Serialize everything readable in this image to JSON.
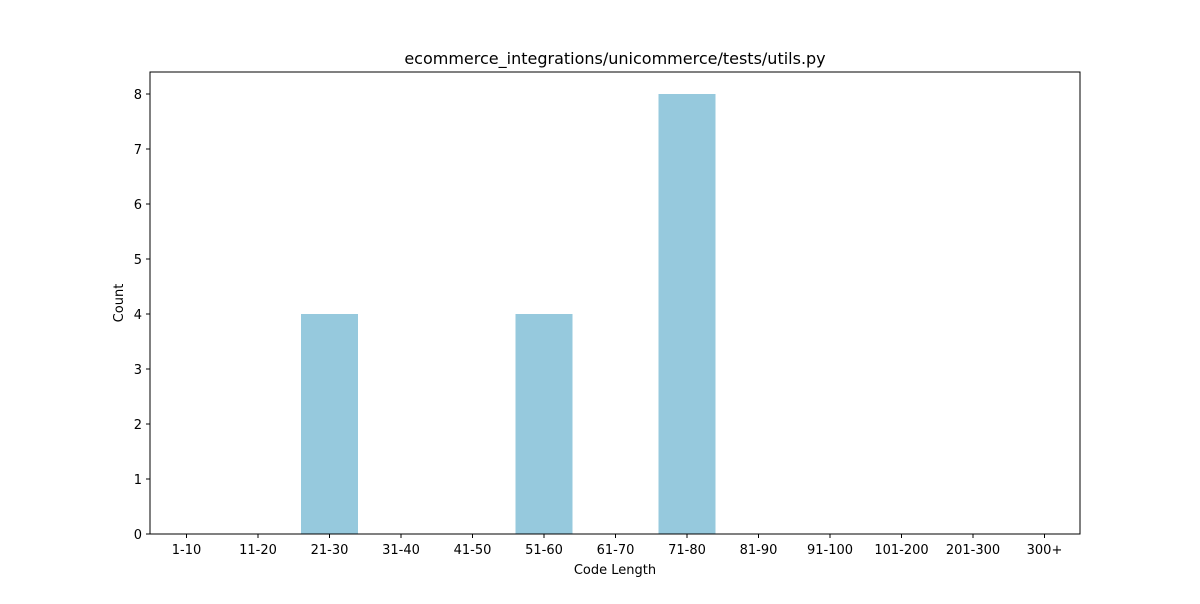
{
  "chart_data": {
    "type": "bar",
    "title": "ecommerce_integrations/unicommerce/tests/utils.py",
    "xlabel": "Code Length",
    "ylabel": "Count",
    "categories": [
      "1-10",
      "11-20",
      "21-30",
      "31-40",
      "41-50",
      "51-60",
      "61-70",
      "71-80",
      "81-90",
      "91-100",
      "101-200",
      "201-300",
      "300+"
    ],
    "values": [
      0,
      0,
      4,
      0,
      0,
      4,
      0,
      8,
      0,
      0,
      0,
      0,
      0
    ],
    "ylim": [
      0,
      8.4
    ],
    "yticks": [
      0,
      1,
      2,
      3,
      4,
      5,
      6,
      7,
      8
    ],
    "bar_color": "#96c9dd",
    "grid": false,
    "legend": "none"
  }
}
